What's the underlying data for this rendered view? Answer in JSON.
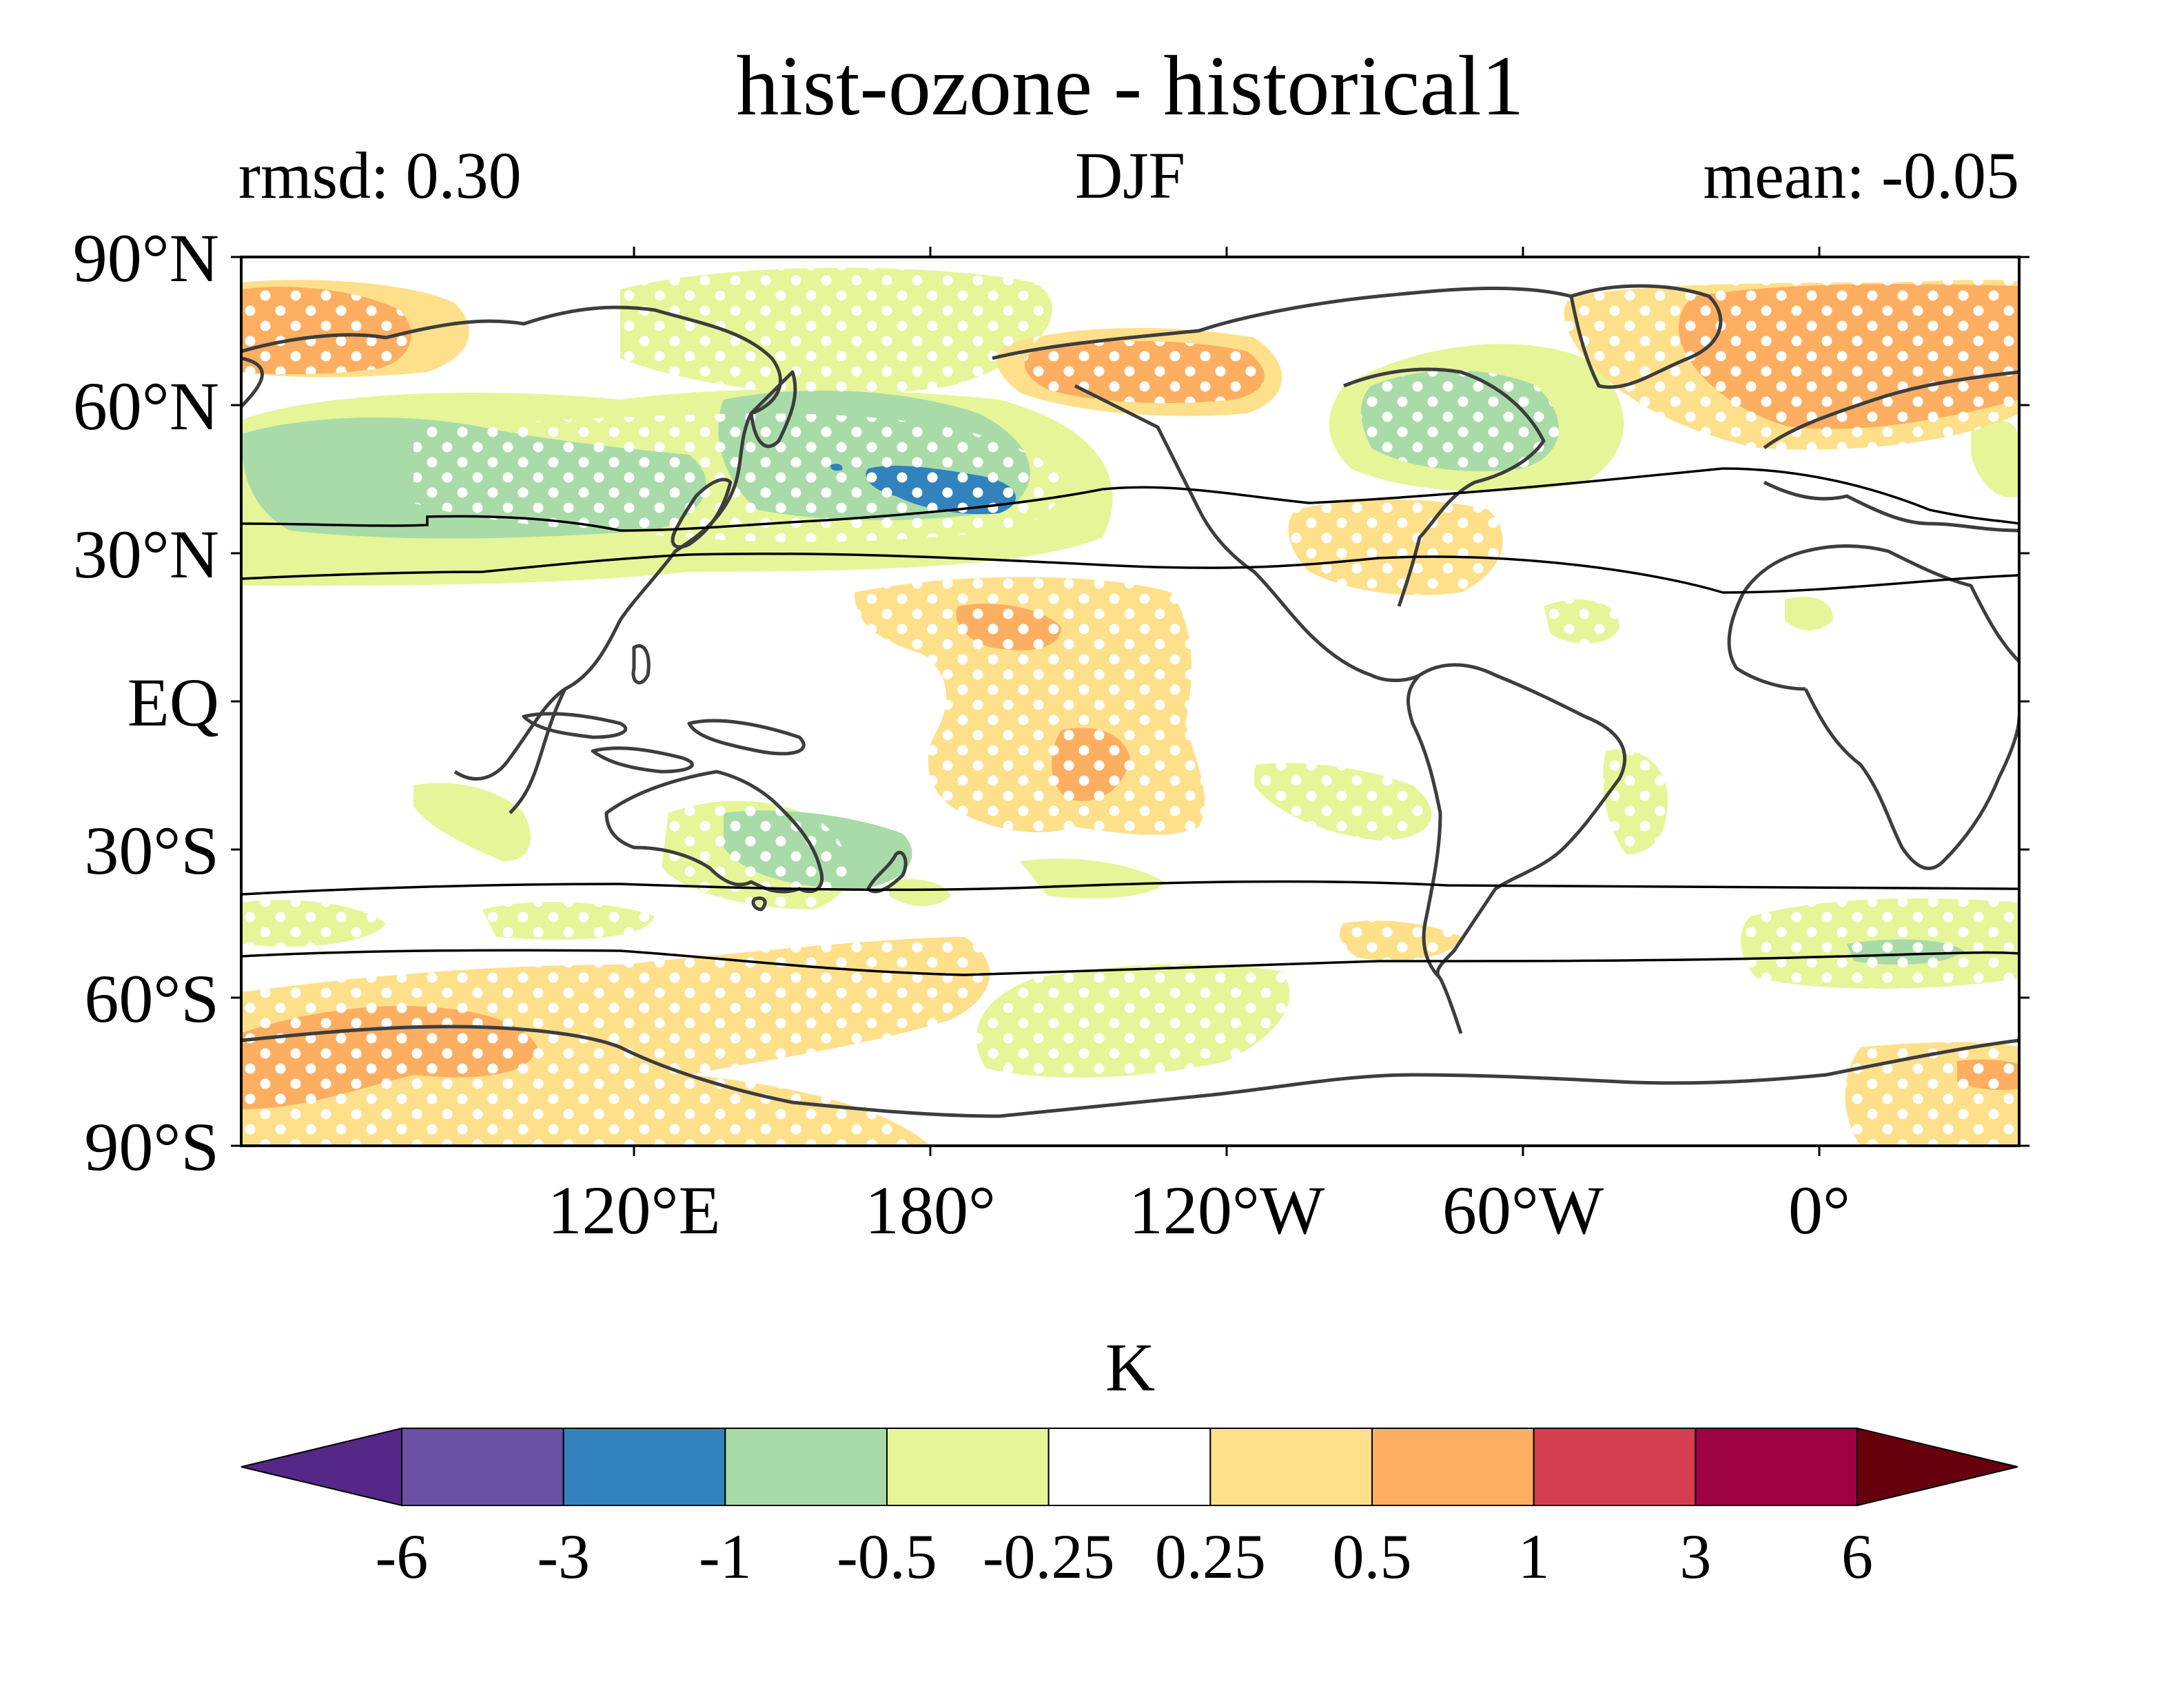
{
  "title": "hist-ozone - historical1",
  "subtitle": {
    "left": "rmsd: 0.30",
    "center": "DJF",
    "right": "mean: -0.05"
  },
  "map": {
    "lat_labels": [
      "90°N",
      "60°N",
      "30°N",
      "EQ",
      "30°S",
      "60°S",
      "90°S"
    ],
    "lon_labels": [
      "120°E",
      "180°",
      "120°W",
      "60°W",
      "0°"
    ],
    "projection": "PlateCarree, central longitude ~200°E",
    "stippling": "white dots mark significant regions"
  },
  "colorbar": {
    "label": "K",
    "ticks": [
      "-6",
      "-3",
      "-1",
      "-0.5",
      "-0.25",
      "0.25",
      "0.5",
      "1",
      "3",
      "6"
    ],
    "colors": [
      "#5e3c99",
      "#6a51a3",
      "#3182bd",
      "#a8dba8",
      "#e6f598",
      "#ffffff",
      "#fee08b",
      "#fdae61",
      "#d53e4f",
      "#9e0142"
    ],
    "extend_low_color": "#542788",
    "extend_high_color": "#67000d"
  }
}
